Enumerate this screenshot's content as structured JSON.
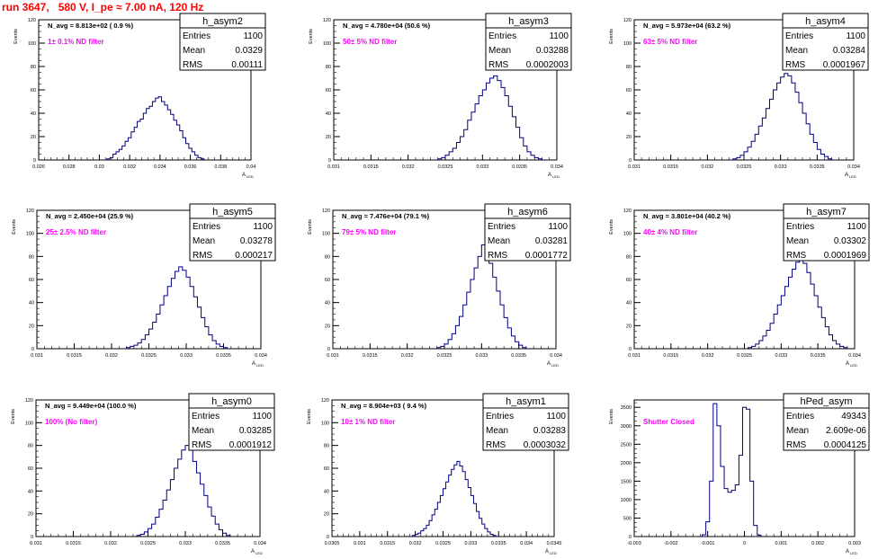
{
  "page": {
    "title": "run 3647,   580 V, I_pe ≈ 7.00 nA, 120 Hz"
  },
  "common": {
    "ylabel": "Events",
    "xlabel": "A",
    "xlabel_sub": "LED",
    "stats_labels": [
      "Entries",
      "Mean",
      "RMS"
    ],
    "line_color": "#000080",
    "note_color": "#ff00ff",
    "title_color": "#ff0000"
  },
  "chart_data": [
    {
      "type": "histogram",
      "name": "h_asym2",
      "navg": "N_avg = 8.813e+02 ( 0.9 %)",
      "note": "1± 0.1% ND filter",
      "stats": [
        "1100",
        "0.0329",
        "0.00111"
      ],
      "xlim": [
        0.026,
        0.04
      ],
      "xticks": [
        "0.026",
        "0.028",
        "0.03",
        "0.032",
        "0.034",
        "0.036",
        "0.038",
        "0.04"
      ],
      "ylim": [
        0,
        120
      ],
      "yticks": [
        "0",
        "20",
        "40",
        "60",
        "80",
        "100",
        "120"
      ],
      "bins": {
        "start": 0.0305,
        "width": 0.0002,
        "values": [
          1,
          2,
          5,
          7,
          9,
          12,
          16,
          19,
          24,
          28,
          33,
          35,
          40,
          44,
          46,
          50,
          53,
          54,
          50,
          47,
          43,
          39,
          34,
          30,
          25,
          19,
          14,
          10,
          7,
          4,
          2,
          1
        ]
      }
    },
    {
      "type": "histogram",
      "name": "h_asym3",
      "navg": "N_avg = 4.780e+04 (50.6 %)",
      "note": "50± 5% ND filter",
      "stats": [
        "1100",
        "0.03288",
        "0.0002003"
      ],
      "xlim": [
        0.031,
        0.034
      ],
      "xticks": [
        "0.031",
        "0.0315",
        "0.032",
        "0.0325",
        "0.033",
        "0.0335",
        "0.034"
      ],
      "ylim": [
        0,
        120
      ],
      "yticks": [
        "0",
        "20",
        "40",
        "60",
        "80",
        "100",
        "120"
      ],
      "bins": {
        "start": 0.0324,
        "width": 5e-05,
        "values": [
          1,
          2,
          4,
          7,
          10,
          15,
          20,
          26,
          34,
          41,
          48,
          55,
          60,
          66,
          70,
          72,
          68,
          62,
          55,
          46,
          37,
          28,
          19,
          12,
          7,
          4,
          2,
          1
        ]
      }
    },
    {
      "type": "histogram",
      "name": "h_asym4",
      "navg": "N_avg = 5.973e+04 (63.2 %)",
      "note": "63± 5% ND filter",
      "stats": [
        "1100",
        "0.03284",
        "0.0001967"
      ],
      "xlim": [
        0.031,
        0.034
      ],
      "xticks": [
        "0.031",
        "0.0315",
        "0.032",
        "0.0325",
        "0.033",
        "0.0335",
        "0.034"
      ],
      "ylim": [
        0,
        120
      ],
      "yticks": [
        "0",
        "20",
        "40",
        "60",
        "80",
        "100",
        "120"
      ],
      "bins": {
        "start": 0.03235,
        "width": 5e-05,
        "values": [
          1,
          2,
          4,
          7,
          11,
          16,
          22,
          29,
          36,
          44,
          52,
          60,
          66,
          71,
          74,
          72,
          66,
          58,
          49,
          40,
          31,
          22,
          15,
          9,
          5,
          3,
          1
        ]
      }
    },
    {
      "type": "histogram",
      "name": "h_asym5",
      "navg": "N_avg = 2.450e+04 (25.9 %)",
      "note": "25± 2.5% ND filter",
      "stats": [
        "1100",
        "0.03278",
        "0.000217"
      ],
      "xlim": [
        0.031,
        0.034
      ],
      "xticks": [
        "0.031",
        "0.0315",
        "0.032",
        "0.0325",
        "0.033",
        "0.0335",
        "0.034"
      ],
      "ylim": [
        0,
        120
      ],
      "yticks": [
        "0",
        "20",
        "40",
        "60",
        "80",
        "100",
        "120"
      ],
      "bins": {
        "start": 0.0322,
        "width": 5e-05,
        "values": [
          1,
          2,
          3,
          5,
          8,
          12,
          17,
          23,
          30,
          38,
          46,
          54,
          61,
          67,
          71,
          68,
          62,
          54,
          45,
          36,
          27,
          19,
          12,
          7,
          4,
          2,
          1
        ]
      }
    },
    {
      "type": "histogram",
      "name": "h_asym6",
      "navg": "N_avg = 7.476e+04 (79.1 %)",
      "note": "79± 5% ND filter",
      "stats": [
        "1100",
        "0.03281",
        "0.0001772"
      ],
      "xlim": [
        0.031,
        0.034
      ],
      "xticks": [
        "0.031",
        "0.0315",
        "0.032",
        "0.0325",
        "0.033",
        "0.0335",
        "0.034"
      ],
      "ylim": [
        0,
        120
      ],
      "yticks": [
        "0",
        "20",
        "40",
        "60",
        "80",
        "100",
        "120"
      ],
      "bins": {
        "start": 0.0324,
        "width": 5e-05,
        "values": [
          1,
          2,
          4,
          8,
          13,
          20,
          28,
          38,
          49,
          60,
          70,
          80,
          90,
          84,
          74,
          62,
          50,
          38,
          27,
          18,
          11,
          6,
          3,
          1
        ]
      }
    },
    {
      "type": "histogram",
      "name": "h_asym7",
      "navg": "N_avg = 3.801e+04 (40.2 %)",
      "note": "40± 4% ND filter",
      "stats": [
        "1100",
        "0.03302",
        "0.0001969"
      ],
      "xlim": [
        0.031,
        0.034
      ],
      "xticks": [
        "0.031",
        "0.0315",
        "0.032",
        "0.0325",
        "0.033",
        "0.0335",
        "0.034"
      ],
      "ylim": [
        0,
        120
      ],
      "yticks": [
        "0",
        "20",
        "40",
        "60",
        "80",
        "100",
        "120"
      ],
      "bins": {
        "start": 0.03255,
        "width": 5e-05,
        "values": [
          1,
          2,
          4,
          7,
          11,
          16,
          22,
          30,
          38,
          46,
          54,
          62,
          69,
          75,
          79,
          74,
          66,
          56,
          46,
          36,
          27,
          19,
          12,
          7,
          4,
          2,
          1
        ]
      }
    },
    {
      "type": "histogram",
      "name": "h_asym0",
      "navg": "N_avg = 9.449e+04 (100.0 %)",
      "note": "100% (No filter)",
      "stats": [
        "1100",
        "0.03285",
        "0.0001912"
      ],
      "xlim": [
        0.031,
        0.034
      ],
      "xticks": [
        "0.031",
        "0.0315",
        "0.032",
        "0.0325",
        "0.033",
        "0.0335",
        "0.034"
      ],
      "ylim": [
        0,
        120
      ],
      "yticks": [
        "0",
        "20",
        "40",
        "60",
        "80",
        "100",
        "120"
      ],
      "bins": {
        "start": 0.03235,
        "width": 5e-05,
        "values": [
          1,
          2,
          4,
          7,
          11,
          17,
          24,
          32,
          41,
          50,
          60,
          68,
          76,
          80,
          76,
          66,
          56,
          46,
          36,
          26,
          18,
          11,
          6,
          3,
          1
        ]
      }
    },
    {
      "type": "histogram",
      "name": "h_asym1",
      "navg": "N_avg = 8.904e+03 ( 9.4 %)",
      "note": "10± 1% ND filter",
      "stats": [
        "1100",
        "0.03283",
        "0.0003032"
      ],
      "xlim": [
        0.0305,
        0.0345
      ],
      "xticks": [
        "0.0305",
        "0.031",
        "0.0315",
        "0.032",
        "0.0325",
        "0.033",
        "0.0335",
        "0.034",
        "0.0345"
      ],
      "ylim": [
        0,
        120
      ],
      "yticks": [
        "0",
        "20",
        "40",
        "60",
        "80",
        "100",
        "120"
      ],
      "bins": {
        "start": 0.03195,
        "width": 5e-05,
        "values": [
          1,
          2,
          3,
          5,
          7,
          10,
          14,
          19,
          24,
          30,
          36,
          42,
          48,
          54,
          59,
          63,
          66,
          62,
          57,
          50,
          43,
          36,
          29,
          22,
          16,
          11,
          7,
          4,
          2,
          1
        ]
      }
    },
    {
      "type": "histogram",
      "name": "hPed_asym",
      "navg": "",
      "note": "Shutter Closed",
      "stats": [
        "49343",
        "2.609e-06",
        "0.0004125"
      ],
      "xlim": [
        -0.003,
        0.003
      ],
      "xticks": [
        "-0.003",
        "-0.002",
        "-0.001",
        "0",
        "0.001",
        "0.002",
        "0.003"
      ],
      "ylim": [
        0,
        3700
      ],
      "yticks": [
        "0",
        "500",
        "1000",
        "1500",
        "2000",
        "2500",
        "3000",
        "3500"
      ],
      "bins": {
        "start": -0.00115,
        "width": 0.0001,
        "values": [
          50,
          400,
          1500,
          3600,
          3000,
          1900,
          1300,
          1200,
          1250,
          1400,
          2200,
          3500,
          3450,
          1500,
          300,
          40
        ]
      }
    }
  ]
}
